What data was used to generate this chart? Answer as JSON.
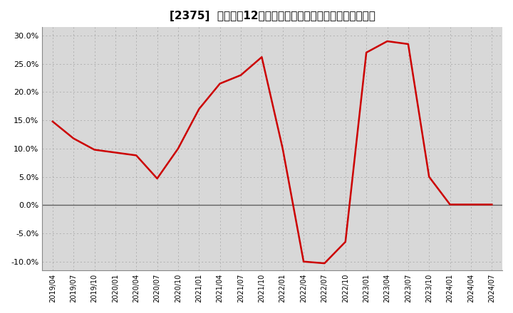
{
  "title": "[2375]  売上高の12か月移動合計の対前年同期増減率の推移",
  "x_labels": [
    "2019/04",
    "2019/07",
    "2019/10",
    "2020/01",
    "2020/04",
    "2020/07",
    "2020/10",
    "2021/01",
    "2021/04",
    "2021/07",
    "2021/10",
    "2022/01",
    "2022/04",
    "2022/07",
    "2022/10",
    "2023/01",
    "2023/04",
    "2023/07",
    "2023/10",
    "2024/01",
    "2024/04",
    "2024/07"
  ],
  "values": [
    0.148,
    0.118,
    0.098,
    0.093,
    0.088,
    0.047,
    0.1,
    0.17,
    0.215,
    0.23,
    0.262,
    0.1,
    -0.1,
    -0.103,
    -0.065,
    0.27,
    0.29,
    0.285,
    0.05,
    0.001,
    0.001,
    0.001
  ],
  "ylim": [
    -0.115,
    0.315
  ],
  "yticks": [
    -0.1,
    -0.05,
    0.0,
    0.05,
    0.1,
    0.15,
    0.2,
    0.25,
    0.3
  ],
  "line_color": "#cc0000",
  "bg_color": "#ffffff",
  "plot_bg_color": "#d8d8d8",
  "grid_color": "#b0b0b0",
  "zero_line_color": "#606060",
  "title_fontsize": 11
}
